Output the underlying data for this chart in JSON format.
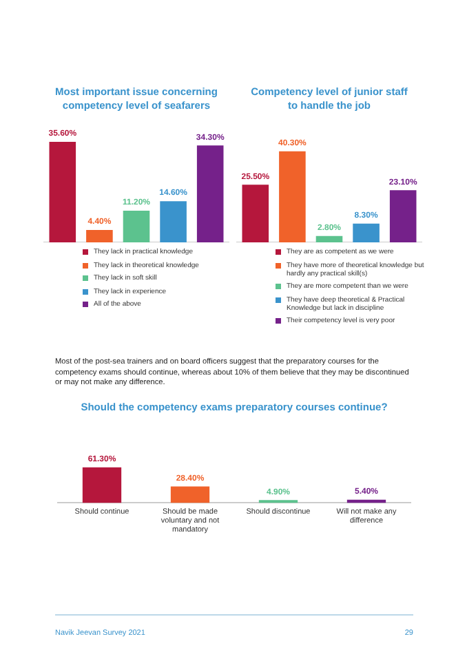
{
  "chart_data": [
    {
      "type": "bar",
      "title": "Most important issue concerning competency level of seafarers",
      "categories": [
        null,
        null,
        null,
        null,
        null
      ],
      "legend": "bottom",
      "tick_labels": false,
      "stacked": true,
      "series": [
        {
          "name": "They lack in practical knowledge",
          "color": "#b5173c",
          "values": [
            35.6,
            null,
            null,
            null,
            null
          ],
          "value_labels": [
            "35.60%",
            null,
            null,
            null,
            null
          ]
        },
        {
          "name": "They lack in theoretical knowledge",
          "color": "#f0622a",
          "values": [
            null,
            4.4,
            null,
            null,
            null
          ],
          "value_labels": [
            null,
            "4.40%",
            null,
            null,
            null
          ]
        },
        {
          "name": "They lack in soft skill",
          "color": "#5cc28e",
          "values": [
            null,
            null,
            11.2,
            null,
            null
          ],
          "value_labels": [
            null,
            null,
            "11.20%",
            null,
            null
          ]
        },
        {
          "name": "They lack in experience",
          "color": "#3a93cc",
          "values": [
            null,
            null,
            null,
            14.6,
            null
          ],
          "value_labels": [
            null,
            null,
            null,
            "14.60%",
            null
          ]
        },
        {
          "name": "All of the above",
          "color": "#75218a",
          "values": [
            null,
            null,
            null,
            null,
            34.3
          ],
          "value_labels": [
            null,
            null,
            null,
            null,
            "34.30%"
          ]
        }
      ]
    },
    {
      "type": "bar",
      "title": "Competency level of junior staff to handle the job",
      "categories": [
        null,
        null,
        null,
        null,
        null
      ],
      "legend": "bottom",
      "tick_labels": false,
      "stacked": true,
      "series": [
        {
          "name": "They are as competent as we were",
          "color": "#b5173c",
          "values": [
            25.5,
            null,
            null,
            null,
            null
          ],
          "value_labels": [
            "25.50%",
            null,
            null,
            null,
            null
          ]
        },
        {
          "name": "They have more of theoretical knowledge but hardly any practical skill(s)",
          "color": "#f0622a",
          "values": [
            null,
            40.3,
            null,
            null,
            null
          ],
          "value_labels": [
            null,
            "40.30%",
            null,
            null,
            null
          ]
        },
        {
          "name": "They are more competent than we were",
          "color": "#5cc28e",
          "values": [
            null,
            null,
            2.8,
            null,
            null
          ],
          "value_labels": [
            null,
            null,
            "2.80%",
            null,
            null
          ]
        },
        {
          "name": "They have deep theoretical & Practical Knowledge but lack in discipline",
          "color": "#3a93cc",
          "values": [
            null,
            null,
            null,
            8.3,
            null
          ],
          "value_labels": [
            null,
            null,
            null,
            "8.30%",
            null
          ]
        },
        {
          "name": "Their competency level is very poor",
          "color": "#75218a",
          "values": [
            null,
            null,
            null,
            null,
            23.1
          ],
          "value_labels": [
            null,
            null,
            null,
            null,
            "23.10%"
          ]
        }
      ]
    },
    {
      "type": "bar",
      "title": "Should the competency exams preparatory courses continue?",
      "categories": [
        "Should continue",
        "Should be made voluntary and not mandatory",
        "Should discontinue",
        "Will not make any difference"
      ],
      "tick_labels": "x",
      "values": [
        61.3,
        28.4,
        4.9,
        5.4
      ],
      "colors": [
        "#b5173c",
        "#f0622a",
        "#5cc28e",
        "#75218a"
      ],
      "value_labels": [
        "61.30%",
        "28.40%",
        "4.90%",
        "5.40%"
      ],
      "annotations": [
        "Most of the post-sea trainers and on board officers suggest that the preparatory courses for the competency exams should continue, whereas about 10% of them believe that they may be discontinued or may not make any difference.",
        "Navik Jeevan Survey 2021",
        "29"
      ]
    }
  ]
}
